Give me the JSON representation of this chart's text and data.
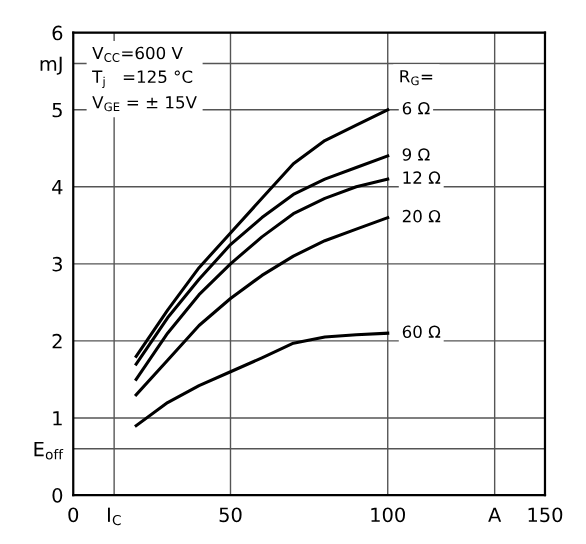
{
  "chart_data": {
    "type": "line",
    "x": [
      20,
      30,
      40,
      50,
      60,
      70,
      80,
      90,
      100
    ],
    "series": [
      {
        "name": "6 Ω",
        "color": "#000000",
        "values": [
          1.8,
          2.4,
          2.95,
          3.4,
          3.85,
          4.3,
          4.6,
          4.8,
          5.0
        ]
      },
      {
        "name": "9 Ω",
        "color": "#000000",
        "values": [
          1.7,
          2.3,
          2.8,
          3.25,
          3.6,
          3.9,
          4.1,
          4.25,
          4.4
        ]
      },
      {
        "name": "12 Ω",
        "color": "#000000",
        "values": [
          1.5,
          2.1,
          2.6,
          3.0,
          3.35,
          3.65,
          3.85,
          4.0,
          4.1
        ]
      },
      {
        "name": "20 Ω",
        "color": "#000000",
        "values": [
          1.3,
          1.75,
          2.2,
          2.55,
          2.85,
          3.1,
          3.3,
          3.45,
          3.6
        ]
      },
      {
        "name": "60 Ω",
        "color": "#000000",
        "values": [
          0.9,
          1.2,
          1.42,
          1.6,
          1.78,
          1.97,
          2.05,
          2.08,
          2.1
        ]
      }
    ],
    "xlim": [
      0,
      150
    ],
    "ylim": [
      0,
      6
    ],
    "xticks": [
      0,
      {
        "value": 13,
        "label": "I$_{C}$"
      },
      50,
      100,
      {
        "value": 134,
        "label": "A"
      },
      150
    ],
    "yticks": [
      0,
      {
        "value": 0.6,
        "label": "E$_{off}$"
      },
      1,
      2,
      3,
      4,
      5,
      {
        "value": 5.6,
        "label": "mJ"
      },
      6
    ],
    "grid": true,
    "legend": false,
    "marker": "none",
    "line_style": "solid",
    "annotations": [
      "V$_{CC}$=600 V\nT$_{j}$   =125 °C\nV$_{GE}$ = ± 15V",
      "R$_{G}$="
    ]
  }
}
